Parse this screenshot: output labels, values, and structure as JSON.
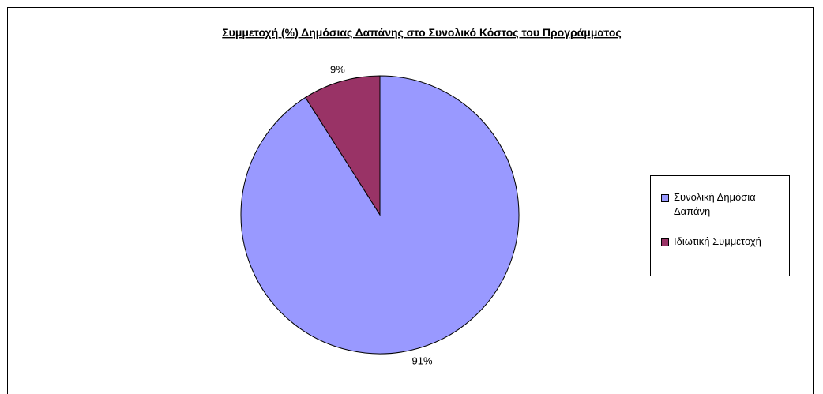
{
  "colors": {
    "public": "#9999ff",
    "private": "#993366",
    "outline": "#000000"
  },
  "chart_data": {
    "type": "pie",
    "title": "Συμμετοχή (%) Δημόσιας Δαπάνης στο Συνολικό Κόστος του Προγράμματος",
    "categories": [
      "Συνολική Δημόσια Δαπάνη",
      "Ιδιωτική Συμμετοχή"
    ],
    "values": [
      91,
      9
    ],
    "value_labels": [
      "91%",
      "9%"
    ],
    "legend_position": "right"
  },
  "legend": {
    "items": [
      {
        "label": "Συνολική Δημόσια Δαπάνη",
        "color": "#9999ff"
      },
      {
        "label": "Ιδιωτική Συμμετοχή",
        "color": "#993366"
      }
    ]
  }
}
